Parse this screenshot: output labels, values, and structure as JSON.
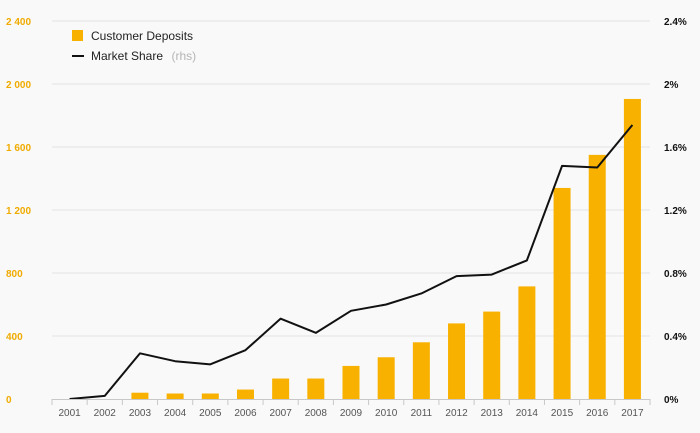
{
  "chart_data": {
    "type": "bar+line",
    "categories": [
      "2001",
      "2002",
      "2003",
      "2004",
      "2005",
      "2006",
      "2007",
      "2008",
      "2009",
      "2010",
      "2011",
      "2012",
      "2013",
      "2014",
      "2015",
      "2016",
      "2017"
    ],
    "series": [
      {
        "name": "Customer Deposits",
        "type": "bar",
        "axis": "left",
        "color": "#f9b100",
        "values": [
          0,
          0,
          40,
          35,
          35,
          60,
          130,
          130,
          210,
          265,
          360,
          480,
          555,
          715,
          1340,
          1550,
          1905
        ]
      },
      {
        "name": "Market Share",
        "name_suffix": "(rhs)",
        "type": "line",
        "axis": "right",
        "color": "#111111",
        "values": [
          0.0,
          0.02,
          0.29,
          0.24,
          0.22,
          0.31,
          0.51,
          0.42,
          0.56,
          0.6,
          0.67,
          0.78,
          0.79,
          0.88,
          1.48,
          1.47,
          1.74
        ]
      }
    ],
    "y_left": {
      "ylim": [
        0,
        2400
      ],
      "ticks": [
        0,
        400,
        800,
        1200,
        1600,
        2000,
        2400
      ],
      "tick_labels": [
        "0",
        "400",
        "800",
        "1 200",
        "1 600",
        "2 000",
        "2 400"
      ],
      "color": "#f0ab00"
    },
    "y_right": {
      "ylim": [
        0,
        2.4
      ],
      "ticks": [
        0,
        0.4,
        0.8,
        1.2,
        1.6,
        2.0,
        2.4
      ],
      "tick_labels": [
        "0%",
        "0.4%",
        "0.8%",
        "1.2%",
        "1.6%",
        "2%",
        "2.4%"
      ],
      "color": "#111111"
    },
    "grid": true,
    "legend": "top-left",
    "title": "",
    "xlabel": "",
    "ylabel": ""
  }
}
